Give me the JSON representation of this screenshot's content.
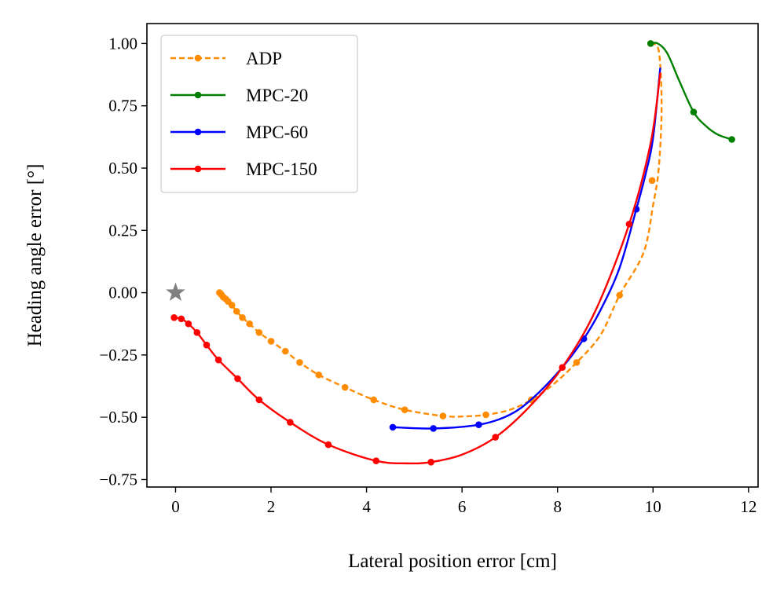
{
  "chart_data": {
    "type": "line",
    "xlabel": "Lateral position error [cm]",
    "ylabel": "Heading angle error [°]",
    "xlim": [
      -0.6,
      12.2
    ],
    "ylim": [
      -0.78,
      1.08
    ],
    "xticks": [
      0,
      2,
      4,
      6,
      8,
      10,
      12
    ],
    "xtick_labels": [
      "0",
      "2",
      "4",
      "6",
      "8",
      "10",
      "12"
    ],
    "yticks": [
      -0.75,
      -0.5,
      -0.25,
      0.0,
      0.25,
      0.5,
      0.75,
      1.0
    ],
    "ytick_labels": [
      "−0.75",
      "−0.50",
      "−0.25",
      "0.00",
      "0.25",
      "0.50",
      "0.75",
      "1.00"
    ],
    "grid": false,
    "legend_position": "top-left",
    "target": {
      "x": 0,
      "y": 0,
      "color": "#808080",
      "marker": "star"
    },
    "series": [
      {
        "name": "ADP",
        "color": "#ff8c00",
        "dashed": true,
        "curve": [
          [
            9.95,
            1.0
          ],
          [
            10.12,
            0.97
          ],
          [
            10.18,
            0.75
          ],
          [
            10.12,
            0.5
          ],
          [
            10.0,
            0.35
          ],
          [
            9.8,
            0.16
          ],
          [
            9.3,
            -0.01
          ],
          [
            8.9,
            -0.17
          ],
          [
            8.4,
            -0.28
          ],
          [
            7.9,
            -0.37
          ],
          [
            7.45,
            -0.43
          ],
          [
            7.0,
            -0.47
          ],
          [
            6.5,
            -0.49
          ],
          [
            6.0,
            -0.497
          ],
          [
            5.6,
            -0.495
          ],
          [
            4.8,
            -0.47
          ],
          [
            4.15,
            -0.43
          ],
          [
            3.55,
            -0.38
          ],
          [
            3.0,
            -0.33
          ],
          [
            2.6,
            -0.28
          ],
          [
            2.3,
            -0.235
          ],
          [
            2.0,
            -0.195
          ],
          [
            1.75,
            -0.16
          ],
          [
            1.55,
            -0.125
          ],
          [
            1.4,
            -0.1
          ],
          [
            1.28,
            -0.075
          ],
          [
            1.18,
            -0.05
          ],
          [
            1.08,
            -0.033
          ],
          [
            1.0,
            -0.02
          ],
          [
            0.95,
            -0.01
          ],
          [
            0.92,
            0.0
          ]
        ],
        "markers": [
          [
            9.95,
            1.0
          ],
          [
            9.98,
            0.45
          ],
          [
            9.3,
            -0.01
          ],
          [
            8.4,
            -0.28
          ],
          [
            7.45,
            -0.43
          ],
          [
            6.5,
            -0.49
          ],
          [
            5.6,
            -0.495
          ],
          [
            4.8,
            -0.47
          ],
          [
            4.15,
            -0.43
          ],
          [
            3.55,
            -0.38
          ],
          [
            3.0,
            -0.33
          ],
          [
            2.6,
            -0.28
          ],
          [
            2.3,
            -0.235
          ],
          [
            2.0,
            -0.195
          ],
          [
            1.75,
            -0.16
          ],
          [
            1.55,
            -0.125
          ],
          [
            1.4,
            -0.1
          ],
          [
            1.28,
            -0.075
          ],
          [
            1.18,
            -0.05
          ],
          [
            1.1,
            -0.035
          ],
          [
            1.05,
            -0.025
          ],
          [
            1.0,
            -0.018
          ],
          [
            0.97,
            -0.01
          ],
          [
            0.94,
            -0.003
          ],
          [
            0.92,
            0.0
          ]
        ]
      },
      {
        "name": "MPC-20",
        "color": "#008000",
        "dashed": false,
        "curve": [
          [
            9.95,
            1.0
          ],
          [
            10.1,
            1.0
          ],
          [
            10.3,
            0.96
          ],
          [
            10.55,
            0.85
          ],
          [
            10.85,
            0.725
          ],
          [
            11.1,
            0.67
          ],
          [
            11.35,
            0.635
          ],
          [
            11.65,
            0.615
          ]
        ],
        "markers": [
          [
            9.95,
            1.0
          ],
          [
            10.85,
            0.725
          ],
          [
            11.65,
            0.615
          ]
        ]
      },
      {
        "name": "MPC-60",
        "color": "#0000ff",
        "dashed": false,
        "curve": [
          [
            10.15,
            0.9
          ],
          [
            10.0,
            0.62
          ],
          [
            9.85,
            0.48
          ],
          [
            9.65,
            0.335
          ],
          [
            9.3,
            0.1
          ],
          [
            8.9,
            -0.07
          ],
          [
            8.55,
            -0.185
          ],
          [
            8.1,
            -0.3
          ],
          [
            7.5,
            -0.42
          ],
          [
            7.0,
            -0.49
          ],
          [
            6.35,
            -0.53
          ],
          [
            5.4,
            -0.545
          ],
          [
            4.55,
            -0.54
          ]
        ],
        "markers": [
          [
            9.65,
            0.335
          ],
          [
            8.55,
            -0.185
          ],
          [
            6.35,
            -0.53
          ],
          [
            5.4,
            -0.545
          ],
          [
            4.55,
            -0.54
          ]
        ]
      },
      {
        "name": "MPC-150",
        "color": "#ff0000",
        "dashed": false,
        "curve": [
          [
            10.15,
            0.88
          ],
          [
            9.95,
            0.6
          ],
          [
            9.5,
            0.275
          ],
          [
            8.8,
            -0.07
          ],
          [
            8.1,
            -0.3
          ],
          [
            7.4,
            -0.46
          ],
          [
            6.7,
            -0.58
          ],
          [
            6.0,
            -0.65
          ],
          [
            5.35,
            -0.68
          ],
          [
            4.85,
            -0.685
          ],
          [
            4.2,
            -0.675
          ],
          [
            3.2,
            -0.61
          ],
          [
            2.4,
            -0.52
          ],
          [
            1.75,
            -0.43
          ],
          [
            1.3,
            -0.345
          ],
          [
            0.9,
            -0.27
          ],
          [
            0.65,
            -0.21
          ],
          [
            0.45,
            -0.16
          ],
          [
            0.27,
            -0.125
          ],
          [
            0.12,
            -0.105
          ],
          [
            -0.03,
            -0.1
          ]
        ],
        "markers": [
          [
            9.5,
            0.275
          ],
          [
            8.1,
            -0.3
          ],
          [
            6.7,
            -0.58
          ],
          [
            5.35,
            -0.68
          ],
          [
            4.2,
            -0.675
          ],
          [
            3.2,
            -0.61
          ],
          [
            2.4,
            -0.52
          ],
          [
            1.75,
            -0.43
          ],
          [
            1.3,
            -0.345
          ],
          [
            0.9,
            -0.27
          ],
          [
            0.65,
            -0.21
          ],
          [
            0.45,
            -0.16
          ],
          [
            0.27,
            -0.125
          ],
          [
            0.12,
            -0.105
          ],
          [
            -0.03,
            -0.1
          ]
        ]
      }
    ]
  }
}
